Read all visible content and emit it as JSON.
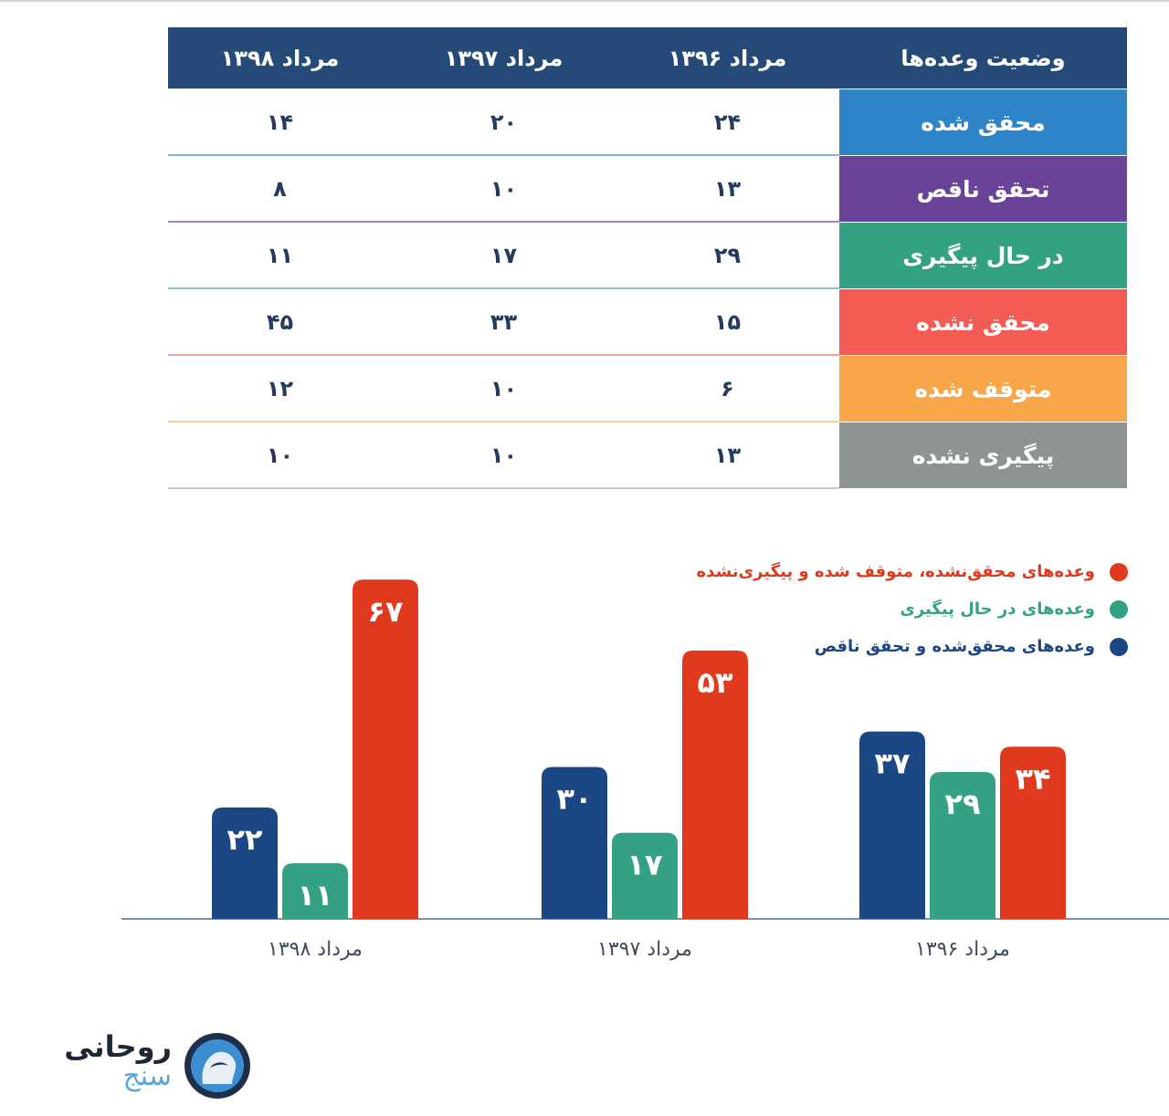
{
  "table": {
    "header": [
      "وضعیت وعده‌ها",
      "مرداد ۱۳۹۶",
      "مرداد ۱۳۹۷",
      "مرداد ۱۳۹۸"
    ],
    "rows": [
      {
        "label": "محقق شده",
        "color": "#2f84c8",
        "line": "#7fb3de",
        "values": [
          "۲۴",
          "۲۰",
          "۱۴"
        ]
      },
      {
        "label": "تحقق ناقص",
        "color": "#6a4399",
        "line": "#9f86c2",
        "values": [
          "۱۳",
          "۱۰",
          "۸"
        ]
      },
      {
        "label": "در حال پیگیری",
        "color": "#32a282",
        "line": "#86c9b4",
        "values": [
          "۲۹",
          "۱۷",
          "۱۱"
        ]
      },
      {
        "label": "محقق نشده",
        "color": "#f35c55",
        "line": "#f6a39f",
        "values": [
          "۱۵",
          "۳۳",
          "۴۵"
        ]
      },
      {
        "label": "متوقف شده",
        "color": "#f7a64a",
        "line": "#f8cf9f",
        "values": [
          "۶",
          "۱۰",
          "۱۲"
        ]
      },
      {
        "label": "پیگیری نشده",
        "color": "#8e9493",
        "line": "#c3c7c6",
        "values": [
          "۱۳",
          "۱۰",
          "۱۰"
        ]
      }
    ]
  },
  "legend": [
    {
      "text": "وعده‌های محقق‌نشده، متوقف شده و پیگیری‌نشده",
      "color": "#e03a1e"
    },
    {
      "text": "وعده‌های در حال پیگیری",
      "color": "#34a185"
    },
    {
      "text": "وعده‌های محقق‌شده و تحقق ناقص",
      "color": "#1c4785"
    }
  ],
  "chart_data": {
    "type": "bar",
    "categories": [
      "مرداد ۱۳۹۶",
      "مرداد ۱۳۹۷",
      "مرداد ۱۳۹۸"
    ],
    "series": [
      {
        "name": "وعده‌های محقق‌شده و تحقق ناقص",
        "color": "#1c4785",
        "values": [
          37,
          30,
          22
        ],
        "labels": [
          "۳۷",
          "۳۰",
          "۲۲"
        ]
      },
      {
        "name": "وعده‌های در حال پیگیری",
        "color": "#34a185",
        "values": [
          29,
          17,
          11
        ],
        "labels": [
          "۲۹",
          "۱۷",
          "۱۱"
        ]
      },
      {
        "name": "وعده‌های محقق‌نشده، متوقف شده و پیگیری‌نشده",
        "color": "#e03a1e",
        "values": [
          34,
          53,
          67
        ],
        "labels": [
          "۳۴",
          "۵۳",
          "۶۷"
        ]
      }
    ],
    "ylim": [
      0,
      70
    ],
    "grid": false,
    "legend": "top-right"
  },
  "logo": {
    "line1": "روحانی",
    "line2": "سنج"
  }
}
